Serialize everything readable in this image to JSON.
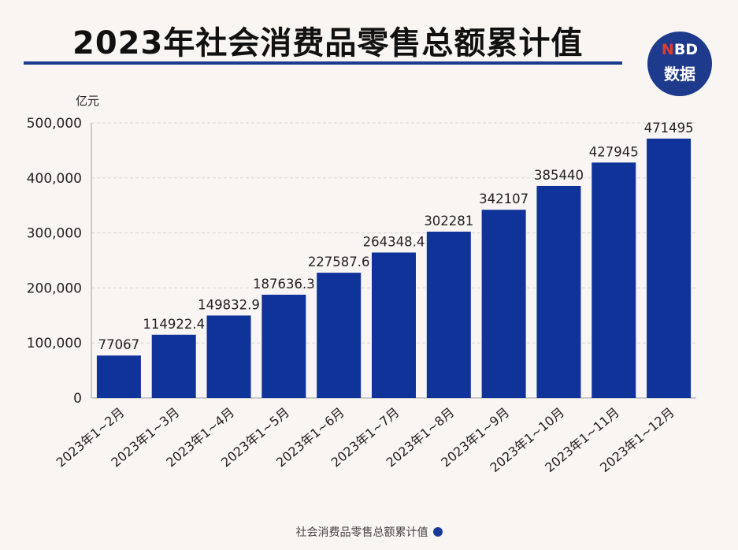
{
  "title": "2023年社会消费品零售总额累计值",
  "logo": {
    "top": "NBD",
    "bottom": "数据"
  },
  "chart_data": {
    "type": "bar",
    "title": "2023年社会消费品零售总额累计值",
    "ylabel": "亿元",
    "xlabel": "",
    "ylim": [
      0,
      500000
    ],
    "yticks": [
      0,
      100000,
      200000,
      300000,
      400000,
      500000
    ],
    "ytick_labels": [
      "0",
      "100,000",
      "200,000",
      "300,000",
      "400,000",
      "500,000"
    ],
    "categories": [
      "2023年1~2月",
      "2023年1~3月",
      "2023年1~4月",
      "2023年1~5月",
      "2023年1~6月",
      "2023年1~7月",
      "2023年1~8月",
      "2023年1~9月",
      "2023年1~10月",
      "2023年1~11月",
      "2023年1~12月"
    ],
    "series": [
      {
        "name": "社会消费品零售总额累计值",
        "values": [
          77067,
          114922.4,
          149832.9,
          187636.3,
          227587.6,
          264348.4,
          302281,
          342107,
          385440,
          427945,
          471495
        ],
        "value_labels": [
          "77067",
          "114922.4",
          "149832.9",
          "187636.3",
          "227587.6",
          "264348.4",
          "302281",
          "342107",
          "385440",
          "427945",
          "471495"
        ]
      }
    ],
    "grid": true,
    "legend": "bottom",
    "bar_color": "#10339a"
  }
}
